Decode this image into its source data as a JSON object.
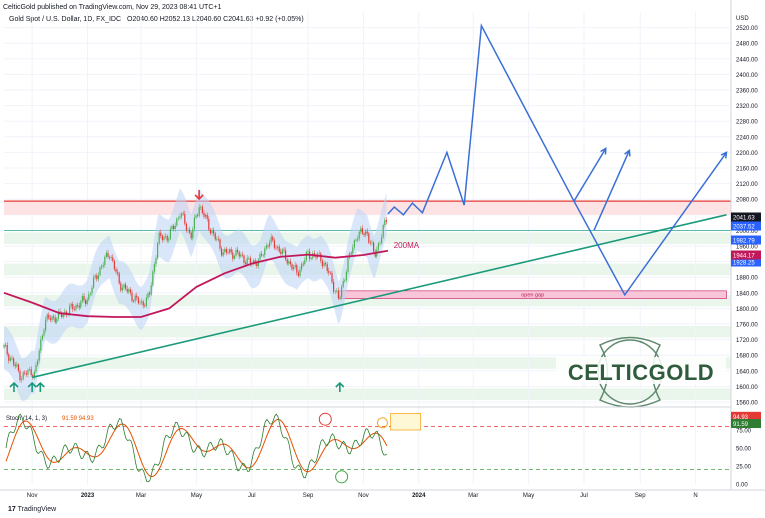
{
  "header": {
    "published": "CelticGold published on TradingView.com, Nov 29, 2023 08:41 UTC+1",
    "symbol_line": "Gold Spot / U.S. Dollar, 1D, FX_IDC",
    "ohlc": "O2040.60  H2052.13  L2040.60  C2041.63  +0.92 (+0.05%)"
  },
  "footer": {
    "brand": "TradingView"
  },
  "logo": {
    "text": "CELTICGOLD"
  },
  "colors": {
    "resistance": "#e53935",
    "ma200": "#c2185b",
    "trendline": "#1a9a7a",
    "projection": "#3a6fd8",
    "candle_up": "#4caf50",
    "candle_down": "#e53935",
    "stoch_k": "#2e7d32",
    "stoch_d": "#e65100",
    "band": "#e8f5e9"
  },
  "chart_data": [
    {
      "type": "line",
      "y_unit": "USD",
      "ylim": [
        1560,
        2560
      ],
      "yticks": [
        1560,
        1600,
        1640,
        1680,
        1720,
        1760,
        1800,
        1840,
        1880,
        1920,
        1960,
        2000,
        2040,
        2080,
        2120,
        2160,
        2200,
        2240,
        2280,
        2320,
        2360,
        2400,
        2440,
        2480,
        2520
      ],
      "x_ticks": [
        {
          "date": "2022-11-01",
          "label": "Nov"
        },
        {
          "date": "2023-01-01",
          "label": "2023"
        },
        {
          "date": "2023-03-01",
          "label": "Mar"
        },
        {
          "date": "2023-05-01",
          "label": "May"
        },
        {
          "date": "2023-07-01",
          "label": "Jul"
        },
        {
          "date": "2023-09-01",
          "label": "Sep"
        },
        {
          "date": "2023-11-01",
          "label": "Nov"
        },
        {
          "date": "2024-01-01",
          "label": "2024"
        },
        {
          "date": "2024-03-01",
          "label": "Mar"
        },
        {
          "date": "2024-05-01",
          "label": "May"
        },
        {
          "date": "2024-07-01",
          "label": "Jul"
        },
        {
          "date": "2024-09-01",
          "label": "Sep"
        },
        {
          "date": "2024-11-01",
          "label": "N"
        }
      ],
      "price_path": [
        [
          "2022-10-01",
          1700
        ],
        [
          "2022-10-10",
          1665
        ],
        [
          "2022-10-20",
          1625
        ],
        [
          "2022-10-31",
          1640
        ],
        [
          "2022-11-04",
          1630
        ],
        [
          "2022-11-15",
          1770
        ],
        [
          "2022-12-01",
          1780
        ],
        [
          "2022-12-15",
          1800
        ],
        [
          "2023-01-01",
          1825
        ],
        [
          "2023-01-10",
          1880
        ],
        [
          "2023-01-25",
          1945
        ],
        [
          "2023-02-05",
          1865
        ],
        [
          "2023-02-20",
          1830
        ],
        [
          "2023-03-01",
          1810
        ],
        [
          "2023-03-10",
          1830
        ],
        [
          "2023-03-20",
          1980
        ],
        [
          "2023-04-01",
          1985
        ],
        [
          "2023-04-13",
          2045
        ],
        [
          "2023-04-25",
          1985
        ],
        [
          "2023-05-04",
          2065
        ],
        [
          "2023-05-15",
          2010
        ],
        [
          "2023-05-30",
          1945
        ],
        [
          "2023-06-15",
          1940
        ],
        [
          "2023-06-30",
          1915
        ],
        [
          "2023-07-10",
          1925
        ],
        [
          "2023-07-20",
          1975
        ],
        [
          "2023-08-01",
          1950
        ],
        [
          "2023-08-20",
          1890
        ],
        [
          "2023-09-01",
          1940
        ],
        [
          "2023-09-15",
          1930
        ],
        [
          "2023-09-25",
          1885
        ],
        [
          "2023-10-05",
          1820
        ],
        [
          "2023-10-15",
          1920
        ],
        [
          "2023-10-25",
          1990
        ],
        [
          "2023-11-05",
          1995
        ],
        [
          "2023-11-13",
          1935
        ],
        [
          "2023-11-20",
          1980
        ],
        [
          "2023-11-28",
          2042
        ]
      ],
      "ma200_path": [
        [
          "2022-10-01",
          1840
        ],
        [
          "2022-11-01",
          1815
        ],
        [
          "2022-12-01",
          1788
        ],
        [
          "2023-01-01",
          1780
        ],
        [
          "2023-02-01",
          1778
        ],
        [
          "2023-03-01",
          1778
        ],
        [
          "2023-04-01",
          1800
        ],
        [
          "2023-05-01",
          1855
        ],
        [
          "2023-06-01",
          1890
        ],
        [
          "2023-07-01",
          1915
        ],
        [
          "2023-08-01",
          1932
        ],
        [
          "2023-09-01",
          1938
        ],
        [
          "2023-10-01",
          1930
        ],
        [
          "2023-11-01",
          1937
        ],
        [
          "2023-11-28",
          1948
        ]
      ],
      "trendline": {
        "from": [
          "2022-11-01",
          1623
        ],
        "to": [
          "2024-12-05",
          2040
        ]
      },
      "resistance": {
        "price": 2075,
        "zone": [
          2040,
          2075
        ]
      },
      "support_line": 2000,
      "projection": [
        [
          "2023-11-28",
          2042
        ],
        [
          "2023-12-05",
          2060
        ],
        [
          "2023-12-15",
          2040
        ],
        [
          "2023-12-25",
          2070
        ],
        [
          "2024-01-05",
          2045
        ],
        [
          "2024-02-01",
          2200
        ],
        [
          "2024-02-20",
          2065
        ],
        [
          "2024-03-10",
          2525
        ],
        [
          "2024-06-20",
          2075
        ],
        [
          "2024-08-15",
          1835
        ],
        [
          "2024-12-05",
          2200
        ]
      ],
      "projection_branches": [
        [
          [
            "2024-06-20",
            2075
          ],
          [
            "2024-07-25",
            2210
          ]
        ],
        [
          [
            "2024-07-12",
            2000
          ],
          [
            "2024-08-20",
            2205
          ]
        ]
      ],
      "open_gap": {
        "label": "open gap",
        "start": "2023-10-05",
        "end": "2024-12-05",
        "range": [
          1825,
          1845
        ]
      },
      "annotations": [
        {
          "text": "200MA",
          "date": "2023-11-30",
          "price": 1960
        }
      ],
      "markers": {
        "up_arrows": [
          "2022-10-12",
          "2022-11-01",
          "2022-11-10",
          "2023-10-06"
        ],
        "down_arrow": "2023-05-04"
      },
      "price_labels": [
        {
          "value": "2041.63",
          "kind": "price"
        },
        {
          "value": "2037.52",
          "kind": "ma"
        },
        {
          "value": "1982.79",
          "kind": "ma"
        },
        {
          "value": "1928.25",
          "kind": "ma"
        },
        {
          "value": "1944.17",
          "kind": "ma200"
        },
        {
          "value": "USD",
          "kind": "unit"
        }
      ]
    },
    {
      "type": "line",
      "title": "Stoch (14, 1, 3)",
      "legend": "91.59  94.93",
      "ylim": [
        0,
        100
      ],
      "yticks": [
        0,
        25,
        50,
        75
      ],
      "levels": [
        80,
        20
      ],
      "last_k": "94.93",
      "last_d": "91.59"
    }
  ]
}
